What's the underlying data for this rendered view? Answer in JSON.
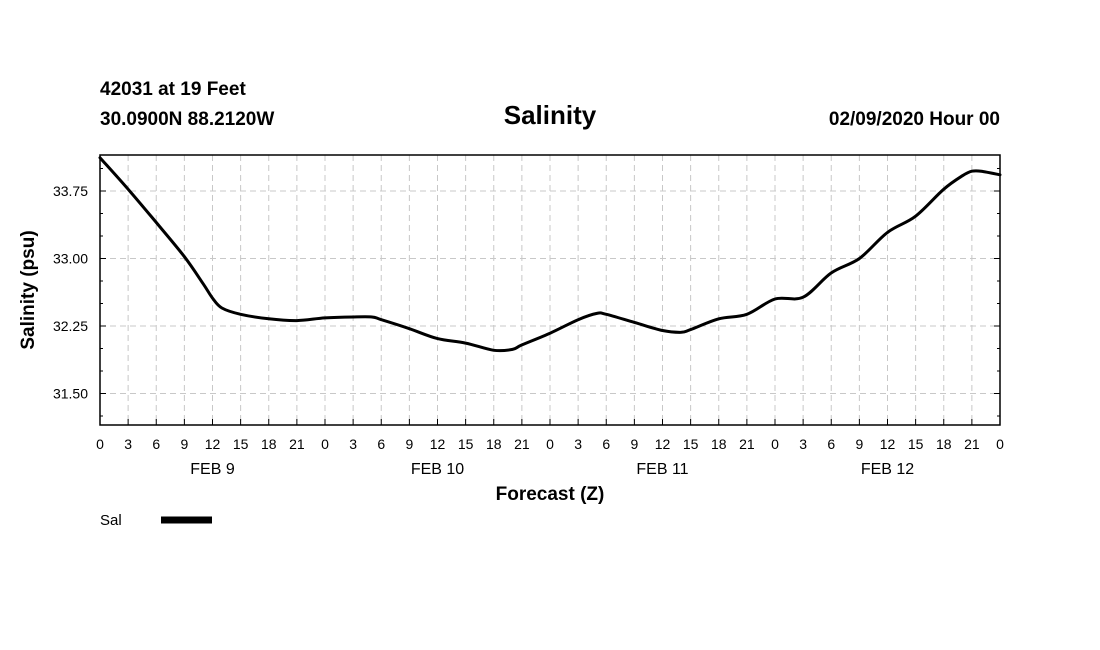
{
  "header": {
    "station": "42031 at 19 Feet",
    "location": "30.0900N 88.2120W",
    "datetime": "02/09/2020 Hour 00"
  },
  "chart_data": {
    "type": "line",
    "title": "Salinity",
    "xlabel": "Forecast (Z)",
    "ylabel": "Salinity (psu)",
    "x_unit": "forecast hours",
    "xlim": [
      0,
      96
    ],
    "ylim": [
      31.15,
      34.15
    ],
    "y_ticks": [
      31.5,
      32.25,
      33.0,
      33.75
    ],
    "y_tick_labels": [
      "31.50",
      "32.25",
      "33.00",
      "33.75"
    ],
    "x_tick_step": 3,
    "x_tick_labels": [
      "0",
      "3",
      "6",
      "9",
      "12",
      "15",
      "18",
      "21",
      "0",
      "3",
      "6",
      "9",
      "12",
      "15",
      "18",
      "21",
      "0",
      "3",
      "6",
      "9",
      "12",
      "15",
      "18",
      "21",
      "0",
      "3",
      "6",
      "9",
      "12",
      "15",
      "18",
      "21",
      "0"
    ],
    "date_labels": [
      {
        "label": "FEB 9",
        "x": 12
      },
      {
        "label": "FEB 10",
        "x": 36
      },
      {
        "label": "FEB 11",
        "x": 60
      },
      {
        "label": "FEB 12",
        "x": 84
      }
    ],
    "grid": true,
    "legend": {
      "placement": "bottom-left"
    },
    "series": [
      {
        "name": "Sal",
        "color": "#000000",
        "points": [
          [
            0,
            34.12
          ],
          [
            3,
            33.77
          ],
          [
            6,
            33.4
          ],
          [
            9,
            33.02
          ],
          [
            11,
            32.72
          ],
          [
            12,
            32.56
          ],
          [
            13,
            32.45
          ],
          [
            15,
            32.38
          ],
          [
            18,
            32.33
          ],
          [
            21,
            32.31
          ],
          [
            24,
            32.34
          ],
          [
            27,
            32.35
          ],
          [
            29,
            32.35
          ],
          [
            30,
            32.32
          ],
          [
            33,
            32.22
          ],
          [
            36,
            32.11
          ],
          [
            39,
            32.06
          ],
          [
            42,
            31.98
          ],
          [
            44,
            31.99
          ],
          [
            45,
            32.04
          ],
          [
            48,
            32.17
          ],
          [
            51,
            32.32
          ],
          [
            53,
            32.39
          ],
          [
            54,
            32.38
          ],
          [
            57,
            32.29
          ],
          [
            60,
            32.2
          ],
          [
            62,
            32.18
          ],
          [
            63,
            32.21
          ],
          [
            66,
            32.33
          ],
          [
            69,
            32.38
          ],
          [
            72,
            32.55
          ],
          [
            75,
            32.57
          ],
          [
            78,
            32.84
          ],
          [
            81,
            33.0
          ],
          [
            84,
            33.29
          ],
          [
            87,
            33.47
          ],
          [
            90,
            33.77
          ],
          [
            92,
            33.92
          ],
          [
            93,
            33.97
          ],
          [
            94,
            33.97
          ],
          [
            96,
            33.93
          ]
        ]
      }
    ]
  }
}
